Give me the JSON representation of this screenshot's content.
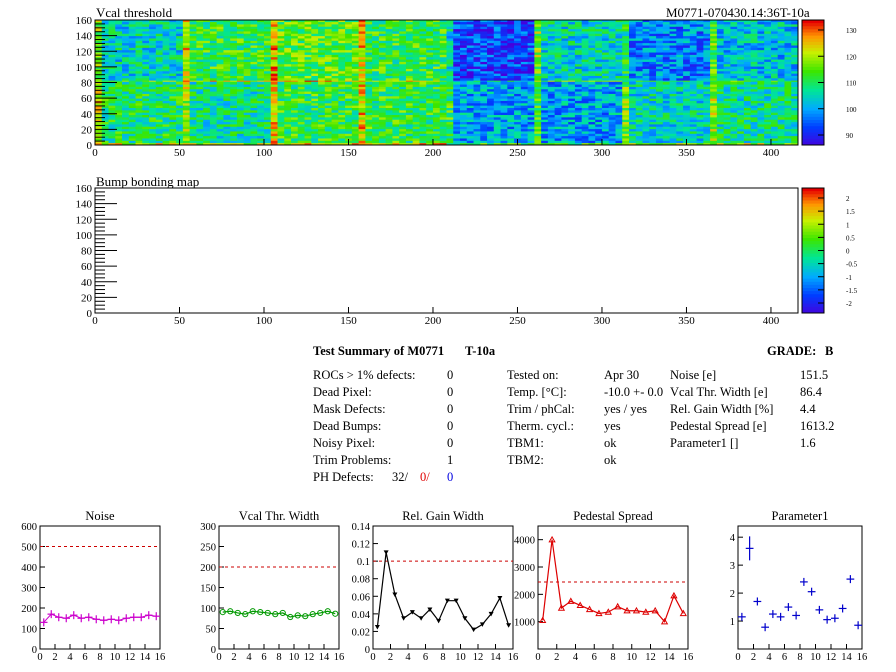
{
  "header": {
    "map1_title": "Vcal threshold",
    "module_id": "M0771-070430.14:36T-10a",
    "map2_title": "Bump bonding map"
  },
  "maps": {
    "x_ticks": [
      "0",
      "50",
      "100",
      "150",
      "200",
      "250",
      "300",
      "350",
      "400"
    ],
    "y_ticks": [
      "0",
      "20",
      "40",
      "60",
      "80",
      "100",
      "120",
      "140",
      "160"
    ],
    "xlim": [
      0,
      416
    ],
    "ylim": [
      0,
      160
    ],
    "map1_scale_labels": [
      "130",
      "120",
      "110",
      "100",
      "90"
    ],
    "map2_scale_labels": [
      "2",
      "1.5",
      "1",
      "0.5",
      "0",
      "-0.5",
      "-1",
      "-1.5",
      "-2"
    ]
  },
  "summary": {
    "title": "Test Summary of M0771",
    "temp_tag": "T-10a",
    "grade_label": "GRADE:",
    "grade_value": "B",
    "defects": [
      {
        "label": "ROCs > 1% defects:",
        "value": "0"
      },
      {
        "label": "Dead Pixel:",
        "value": "0"
      },
      {
        "label": "Mask Defects:",
        "value": "0"
      },
      {
        "label": "Dead Bumps:",
        "value": "0"
      },
      {
        "label": "Noisy Pixel:",
        "value": "0"
      },
      {
        "label": "Trim Problems:",
        "value": "1"
      }
    ],
    "ph_label": "PH Defects:",
    "ph_v1": "32/",
    "ph_v2": "0/",
    "ph_v3": "0",
    "tests": [
      {
        "label": "Tested on:",
        "value": "Apr 30"
      },
      {
        "label": "Temp. [°C]:",
        "value": "-10.0 +- 0.0"
      },
      {
        "label": "Trim / phCal:",
        "value": "yes / yes"
      },
      {
        "label": "Therm. cycl.:",
        "value": "yes"
      },
      {
        "label": "TBM1:",
        "value": "ok"
      },
      {
        "label": "TBM2:",
        "value": "ok"
      }
    ],
    "params": [
      {
        "label": "Noise [e]",
        "value": "151.5"
      },
      {
        "label": "Vcal Thr. Width [e]",
        "value": "86.4"
      },
      {
        "label": "Rel. Gain Width [%]",
        "value": "4.4"
      },
      {
        "label": "Pedestal Spread [e]",
        "value": "1613.2"
      },
      {
        "label": "Parameter1 []",
        "value": "1.6"
      }
    ]
  },
  "chart_data": [
    {
      "type": "scatter",
      "title": "Noise",
      "color": "#cc00cc",
      "style": "cross",
      "x": [
        0,
        1,
        2,
        3,
        4,
        5,
        6,
        7,
        8,
        9,
        10,
        11,
        12,
        13,
        14,
        15
      ],
      "values": [
        130,
        170,
        155,
        150,
        165,
        150,
        155,
        145,
        140,
        145,
        140,
        150,
        155,
        155,
        165,
        160
      ],
      "xlim": [
        0,
        16
      ],
      "ylim": [
        0,
        600
      ],
      "xticks": [
        "0",
        "2",
        "4",
        "6",
        "8",
        "10",
        "12",
        "14",
        "16"
      ],
      "yticks": [
        "0",
        "100",
        "200",
        "300",
        "400",
        "500",
        "600"
      ],
      "threshold": 500
    },
    {
      "type": "line",
      "title": "Vcal Thr. Width",
      "color": "#009900",
      "style": "circle",
      "x": [
        0,
        1,
        2,
        3,
        4,
        5,
        6,
        7,
        8,
        9,
        10,
        11,
        12,
        13,
        14,
        15
      ],
      "values": [
        90,
        92,
        88,
        85,
        92,
        90,
        88,
        85,
        88,
        78,
        82,
        80,
        85,
        88,
        92,
        86
      ],
      "xlim": [
        0,
        16
      ],
      "ylim": [
        0,
        300
      ],
      "xticks": [
        "0",
        "2",
        "4",
        "6",
        "8",
        "10",
        "12",
        "14",
        "16"
      ],
      "yticks": [
        "0",
        "50",
        "100",
        "150",
        "200",
        "250",
        "300"
      ],
      "threshold": 200
    },
    {
      "type": "line",
      "title": "Rel. Gain Width",
      "color": "#000000",
      "style": "triangle-down",
      "x": [
        0,
        1,
        2,
        3,
        4,
        5,
        6,
        7,
        8,
        9,
        10,
        11,
        12,
        13,
        14,
        15
      ],
      "values": [
        0.025,
        0.11,
        0.062,
        0.035,
        0.042,
        0.035,
        0.045,
        0.032,
        0.055,
        0.055,
        0.035,
        0.022,
        0.028,
        0.04,
        0.058,
        0.027
      ],
      "xlim": [
        0,
        16
      ],
      "ylim": [
        0,
        0.14
      ],
      "xticks": [
        "0",
        "2",
        "4",
        "6",
        "8",
        "10",
        "12",
        "14",
        "16"
      ],
      "yticks": [
        "0",
        "0.02",
        "0.04",
        "0.06",
        "0.08",
        "0.1",
        "0.12",
        "0.14"
      ],
      "threshold": 0.1
    },
    {
      "type": "line",
      "title": "Pedestal Spread",
      "color": "#dd0000",
      "style": "triangle-up",
      "x": [
        0,
        1,
        2,
        3,
        4,
        5,
        6,
        7,
        8,
        9,
        10,
        11,
        12,
        13,
        14,
        15
      ],
      "values": [
        1050,
        4000,
        1500,
        1750,
        1600,
        1450,
        1300,
        1350,
        1550,
        1400,
        1400,
        1350,
        1400,
        1000,
        1950,
        1300
      ],
      "xlim": [
        0,
        16
      ],
      "ylim": [
        0,
        4500
      ],
      "xticks": [
        "0",
        "2",
        "4",
        "6",
        "8",
        "10",
        "12",
        "14",
        "16"
      ],
      "yticks": [
        "1000",
        "2000",
        "3000",
        "4000"
      ],
      "threshold": 2450
    },
    {
      "type": "scatter",
      "title": "Parameter1",
      "color": "#0000cc",
      "style": "cross",
      "x": [
        0,
        1,
        2,
        3,
        4,
        5,
        6,
        7,
        8,
        9,
        10,
        11,
        12,
        13,
        14,
        15
      ],
      "values": [
        1.15,
        3.6,
        1.7,
        0.78,
        1.25,
        1.15,
        1.5,
        1.2,
        2.4,
        2.05,
        1.4,
        1.05,
        1.1,
        1.45,
        2.5,
        0.85
      ],
      "xlim": [
        0,
        16
      ],
      "ylim": [
        0,
        4.4
      ],
      "xticks": [
        "0",
        "2",
        "4",
        "6",
        "8",
        "10",
        "12",
        "14",
        "16"
      ],
      "yticks": [
        "1",
        "2",
        "3",
        "4"
      ],
      "threshold": null
    }
  ]
}
